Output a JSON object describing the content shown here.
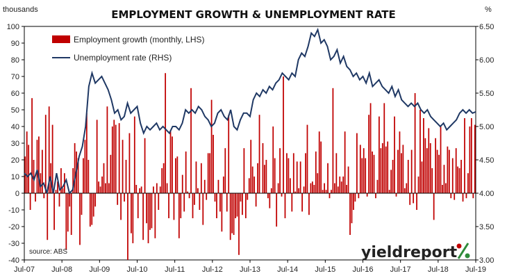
{
  "chart_data": {
    "type": "bar+line",
    "title": "EMPLOYMENT GROWTH & UNEMPLOYMENT RATE",
    "y_left_label": "thousands",
    "y_right_label": "%",
    "y_left_range": [
      -40,
      100
    ],
    "y_right_range": [
      3.0,
      6.5
    ],
    "y_left_ticks": [
      "100",
      "90",
      "80",
      "70",
      "60",
      "50",
      "40",
      "30",
      "20",
      "10",
      "0",
      "-10",
      "-20",
      "-30",
      "-40"
    ],
    "y_right_ticks": [
      "6.50",
      "6.00",
      "5.50",
      "5.00",
      "4.50",
      "4.00",
      "3.50",
      "3.00"
    ],
    "x_ticks": [
      "Jul-07",
      "Jul-08",
      "Jul-09",
      "Jul-10",
      "Jul-11",
      "Jul-12",
      "Jul-13",
      "Jul-14",
      "Jul-15",
      "Jul-16",
      "Jul-17",
      "Jul-18",
      "Jul-19"
    ],
    "grid": false,
    "legend_position": "top-left",
    "series": [
      {
        "name": "Employment growth (monthly, LHS)",
        "kind": "bar",
        "color": "#c00000",
        "values": [
          22,
          37,
          29,
          -10,
          57,
          20,
          -5,
          32,
          34,
          12,
          26,
          -3,
          47,
          -28,
          52,
          18,
          41,
          -22,
          2,
          7,
          -8,
          15,
          3,
          12,
          -34,
          -23,
          -8,
          -25,
          15,
          30,
          25,
          21,
          -31,
          -13,
          21,
          32,
          48,
          20,
          -20,
          -19,
          -14,
          -8,
          44,
          7,
          4,
          10,
          18,
          6,
          52,
          6,
          23,
          40,
          44,
          41,
          -7,
          42,
          -16,
          32,
          -5,
          20,
          -40,
          36,
          -24,
          -30,
          46,
          5,
          -15,
          3,
          4,
          -28,
          33,
          -18,
          -30,
          -22,
          -21,
          4,
          -27,
          6,
          -10,
          4,
          15,
          18,
          72,
          6,
          -15,
          37,
          34,
          -16,
          21,
          22,
          -27,
          -15,
          11,
          -11,
          25,
          1,
          -3,
          63,
          -15,
          -7,
          19,
          3,
          -10,
          18,
          -19,
          8,
          -4,
          24,
          24,
          56,
          35,
          -5,
          -15,
          8,
          -11,
          -23,
          10,
          27,
          -11,
          47,
          -28,
          -24,
          -25,
          -15,
          -14,
          -37,
          -5,
          -13,
          27,
          -15,
          -4,
          9,
          32,
          16,
          10,
          -8,
          18,
          47,
          0,
          30,
          17,
          20,
          -3,
          -9,
          3,
          40,
          21,
          -20,
          6,
          27,
          -2,
          70,
          -15,
          24,
          21,
          9,
          -11,
          24,
          1,
          19,
          3,
          19,
          -11,
          4,
          24,
          41,
          -13,
          6,
          7,
          5,
          25,
          12,
          37,
          31,
          2,
          6,
          2,
          18,
          -3,
          2,
          63,
          6,
          24,
          4,
          10,
          7,
          10,
          37,
          5,
          16,
          -25,
          -18,
          -10,
          -5,
          36,
          -3,
          29,
          21,
          27,
          21,
          -2,
          47,
          54,
          25,
          23,
          -3,
          8,
          46,
          27,
          30,
          54,
          28,
          31,
          2,
          14,
          20,
          46,
          -2,
          26,
          37,
          24,
          29,
          3,
          6,
          20,
          -7,
          26,
          -6,
          60,
          -10,
          10,
          50,
          19,
          45,
          33,
          27,
          39,
          30,
          15,
          -16,
          33,
          26,
          23,
          40,
          5,
          17,
          6,
          28,
          26,
          -3,
          21,
          -4,
          27,
          16,
          15,
          20,
          -5,
          45,
          -3,
          12,
          40,
          45,
          -3,
          41
        ]
      },
      {
        "name": "Unemployment rate (RHS)",
        "kind": "line",
        "color": "#1f3864",
        "values": [
          4.3,
          4.25,
          4.3,
          4.2,
          4.35,
          4.1,
          4.15,
          4.0,
          4.25,
          4.0,
          4.3,
          4.05,
          4.1,
          4.2,
          4.0,
          4.05,
          4.3,
          4.55,
          4.7,
          5.0,
          5.6,
          5.8,
          5.65,
          5.7,
          5.75,
          5.65,
          5.55,
          5.4,
          5.2,
          5.25,
          5.1,
          5.15,
          5.35,
          5.2,
          5.25,
          5.3,
          5.05,
          4.9,
          5.0,
          4.95,
          5.0,
          5.05,
          4.95,
          5.0,
          4.95,
          4.9,
          5.0,
          5.0,
          4.95,
          5.05,
          5.25,
          5.2,
          5.25,
          5.2,
          5.3,
          5.25,
          5.15,
          5.1,
          5.0,
          5.05,
          5.2,
          5.25,
          5.15,
          5.1,
          5.25,
          5.0,
          4.95,
          5.1,
          5.2,
          5.2,
          5.15,
          5.4,
          5.5,
          5.45,
          5.55,
          5.5,
          5.6,
          5.55,
          5.65,
          5.7,
          5.8,
          5.75,
          5.7,
          5.8,
          5.75,
          6.0,
          6.1,
          6.05,
          6.2,
          6.4,
          6.35,
          6.45,
          6.25,
          6.3,
          6.2,
          6.0,
          6.05,
          6.15,
          5.95,
          6.05,
          5.9,
          5.85,
          5.75,
          5.8,
          5.7,
          5.75,
          5.65,
          5.8,
          5.6,
          5.65,
          5.7,
          5.6,
          5.55,
          5.5,
          5.6,
          5.45,
          5.55,
          5.4,
          5.35,
          5.3,
          5.35,
          5.3,
          5.35,
          5.25,
          5.2,
          5.25,
          5.15,
          5.1,
          5.05,
          5.0,
          5.05,
          4.95,
          5.0,
          5.05,
          5.1,
          5.2,
          5.25,
          5.2,
          5.25,
          5.2,
          5.22
        ]
      }
    ],
    "source_note": "source: ABS",
    "brand": "yieldreport"
  }
}
